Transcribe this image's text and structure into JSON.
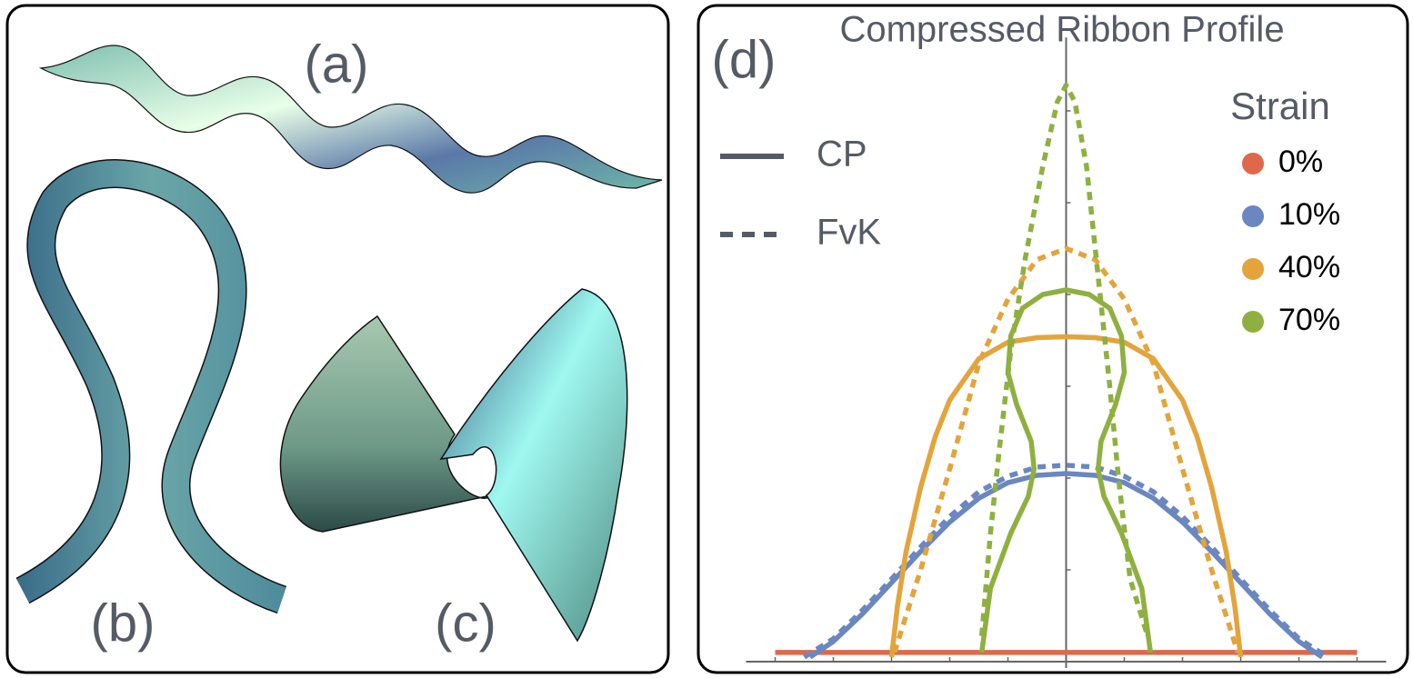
{
  "panel_labels": [
    "(a)",
    "(b)",
    "(c)"
  ],
  "chart_data": {
    "type": "line",
    "panel_label": "(d)",
    "title": "Compressed Ribbon Profile",
    "legend_title": "Strain",
    "xlim": [
      -5.5,
      5.5
    ],
    "ylim": [
      0,
      6.8
    ],
    "xticks": [
      -5,
      -4,
      -3,
      -2,
      -1,
      0,
      1,
      2,
      3,
      4,
      5
    ],
    "yticks": [
      1,
      2,
      3,
      4,
      5,
      6
    ],
    "line_styles": [
      {
        "name": "CP",
        "dash": "solid"
      },
      {
        "name": "FvK",
        "dash": "dashed"
      }
    ],
    "series": [
      {
        "name": "0%",
        "color": "#e0684a",
        "curves": [
          {
            "model": "CP",
            "x": [
              -5,
              5
            ],
            "values": [
              0.1,
              0.1
            ]
          }
        ]
      },
      {
        "name": "10%",
        "color": "#6b87c0",
        "curves": [
          {
            "model": "CP",
            "x": [
              -4.4,
              -4,
              -3.5,
              -3,
              -2.5,
              -2,
              -1.5,
              -1,
              -0.5,
              0,
              0.5,
              1,
              1.5,
              2,
              2.5,
              3,
              3.5,
              4,
              4.4
            ],
            "values": [
              0.05,
              0.22,
              0.52,
              0.86,
              1.2,
              1.52,
              1.78,
              1.95,
              2.03,
              2.05,
              2.03,
              1.95,
              1.78,
              1.52,
              1.2,
              0.86,
              0.52,
              0.22,
              0.05
            ]
          },
          {
            "model": "FvK",
            "x": [
              -4.5,
              -4,
              -3.5,
              -3,
              -2.5,
              -2,
              -1.5,
              -1,
              -0.5,
              0,
              0.5,
              1,
              1.5,
              2,
              2.5,
              3,
              3.5,
              4,
              4.5
            ],
            "values": [
              0.05,
              0.25,
              0.56,
              0.9,
              1.25,
              1.58,
              1.85,
              2.02,
              2.12,
              2.14,
              2.12,
              2.02,
              1.85,
              1.58,
              1.25,
              0.9,
              0.56,
              0.25,
              0.05
            ]
          }
        ]
      },
      {
        "name": "40%",
        "color": "#e3a43c",
        "curves": [
          {
            "model": "CP",
            "x": [
              -3,
              -2.9,
              -2.75,
              -2.5,
              -2.25,
              -2,
              -1.5,
              -1,
              -0.5,
              0,
              0.5,
              1,
              1.5,
              2,
              2.25,
              2.5,
              2.75,
              2.9,
              3
            ],
            "values": [
              0.05,
              0.6,
              1.2,
              1.9,
              2.45,
              2.85,
              3.3,
              3.48,
              3.53,
              3.54,
              3.53,
              3.48,
              3.3,
              2.85,
              2.45,
              1.9,
              1.2,
              0.6,
              0.05
            ]
          },
          {
            "model": "FvK",
            "x": [
              -2.95,
              -2.5,
              -2,
              -1.5,
              -1,
              -0.5,
              0,
              0.5,
              1,
              1.5,
              2,
              2.5,
              2.95
            ],
            "values": [
              0.1,
              1.0,
              2.1,
              3.25,
              3.95,
              4.38,
              4.5,
              4.38,
              3.95,
              3.25,
              2.1,
              1.0,
              0.1
            ]
          }
        ]
      },
      {
        "name": "70%",
        "color": "#8fb040",
        "curves": [
          {
            "model": "CP",
            "x": [
              -1.45,
              -1.3,
              -0.95,
              -0.65,
              -0.55,
              -0.6,
              -0.85,
              -1.0,
              -0.95,
              -0.75,
              -0.4,
              0,
              0.4,
              0.75,
              0.95,
              1.0,
              0.85,
              0.6,
              0.55,
              0.65,
              0.95,
              1.3,
              1.45
            ],
            "values": [
              0.1,
              0.8,
              1.4,
              1.8,
              2.1,
              2.4,
              2.8,
              3.15,
              3.55,
              3.85,
              4.0,
              4.05,
              4.0,
              3.85,
              3.55,
              3.15,
              2.8,
              2.4,
              2.1,
              1.8,
              1.4,
              0.8,
              0.1
            ]
          },
          {
            "model": "FvK",
            "x": [
              -1.45,
              -1.3,
              -1.15,
              -0.95,
              -0.7,
              -0.4,
              -0.15,
              0,
              0.15,
              0.35,
              0.55,
              0.75,
              0.9,
              1.1,
              1.4
            ],
            "values": [
              0.28,
              1.4,
              2.3,
              3.4,
              4.4,
              5.4,
              6.1,
              6.28,
              6.1,
              5.4,
              4.2,
              3.0,
              2.0,
              0.9,
              0.28
            ]
          }
        ]
      }
    ]
  }
}
